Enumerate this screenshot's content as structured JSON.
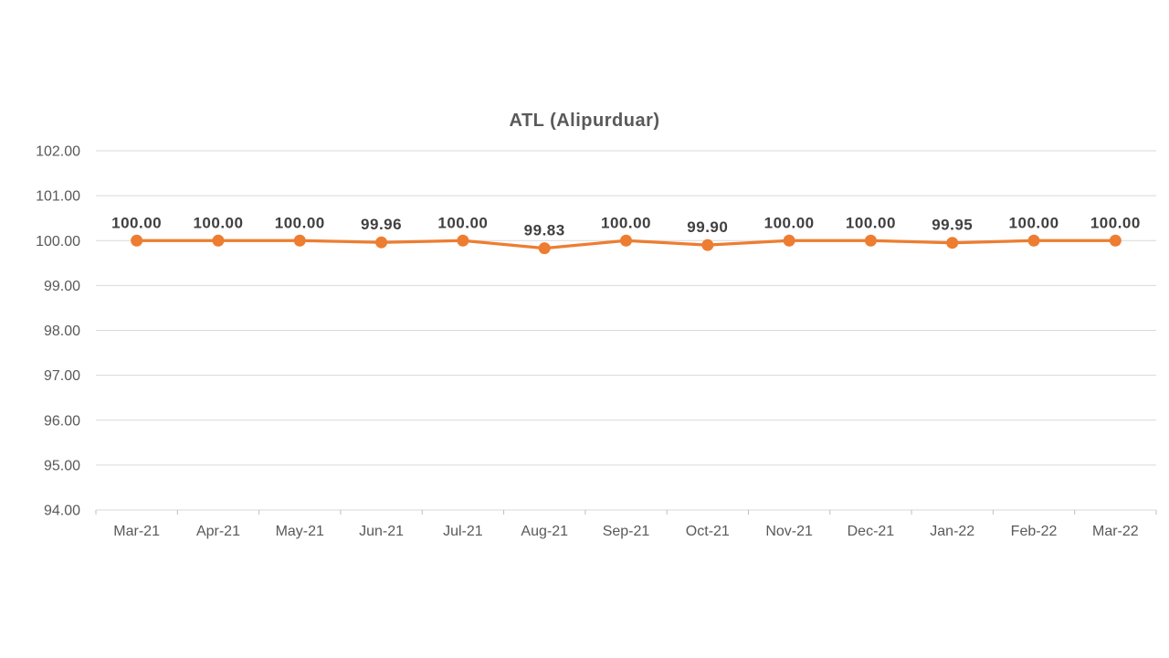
{
  "chart_data": {
    "type": "line",
    "title": "ATL (Alipurduar)",
    "categories": [
      "Mar-21",
      "Apr-21",
      "May-21",
      "Jun-21",
      "Jul-21",
      "Aug-21",
      "Sep-21",
      "Oct-21",
      "Nov-21",
      "Dec-21",
      "Jan-22",
      "Feb-22",
      "Mar-22"
    ],
    "series": [
      {
        "name": "ATL (Alipurduar)",
        "values": [
          100.0,
          100.0,
          100.0,
          99.96,
          100.0,
          99.83,
          100.0,
          99.9,
          100.0,
          100.0,
          99.95,
          100.0,
          100.0
        ],
        "data_labels": [
          "100.00",
          "100.00",
          "100.00",
          "99.96",
          "100.00",
          "99.83",
          "100.00",
          "99.90",
          "100.00",
          "100.00",
          "99.95",
          "100.00",
          "100.00"
        ],
        "color": "#ED7D31"
      }
    ],
    "xlabel": "",
    "ylabel": "",
    "ylim": [
      94,
      102
    ],
    "ytick_step": 1,
    "ytick_labels": [
      "94.00",
      "95.00",
      "96.00",
      "97.00",
      "98.00",
      "99.00",
      "100.00",
      "101.00",
      "102.00"
    ],
    "grid": true,
    "legend_position": "none",
    "marker": "circle",
    "colors": {
      "series": "#ED7D31",
      "grid_line": "#D9D9D9",
      "axis_line": "#D9D9D9",
      "tick_mark": "#BFBFBF",
      "title_text": "#595959",
      "axis_text": "#595959",
      "data_label_text": "#404040",
      "background": "#FFFFFF"
    }
  }
}
